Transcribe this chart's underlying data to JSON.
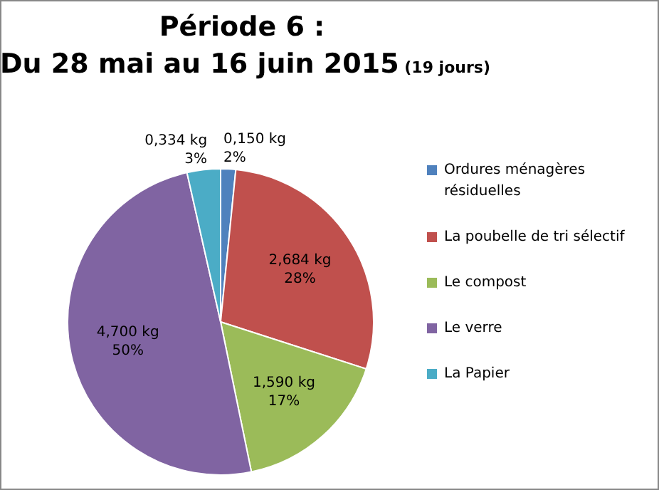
{
  "chart_data": {
    "type": "pie",
    "title": "Période 6 :\nDu 28 mai au 16 juin 2015",
    "subtitle": "(19 jours)",
    "categories": [
      "Ordures ménagères résiduelles",
      "La poubelle de tri sélectif",
      "Le compost",
      "Le verre",
      "La Papier"
    ],
    "values": [
      0.15,
      2.684,
      1.59,
      4.7,
      0.334
    ],
    "colors": [
      "#4f81bd",
      "#c0504d",
      "#9bbb59",
      "#8064a2",
      "#4bacc6"
    ],
    "value_labels": [
      "0,150 kg\n2%",
      "2,684 kg\n28%",
      "1,590 kg\n17%",
      "4,700 kg\n50%",
      "0,334 kg\n3%"
    ],
    "legend": "right"
  }
}
